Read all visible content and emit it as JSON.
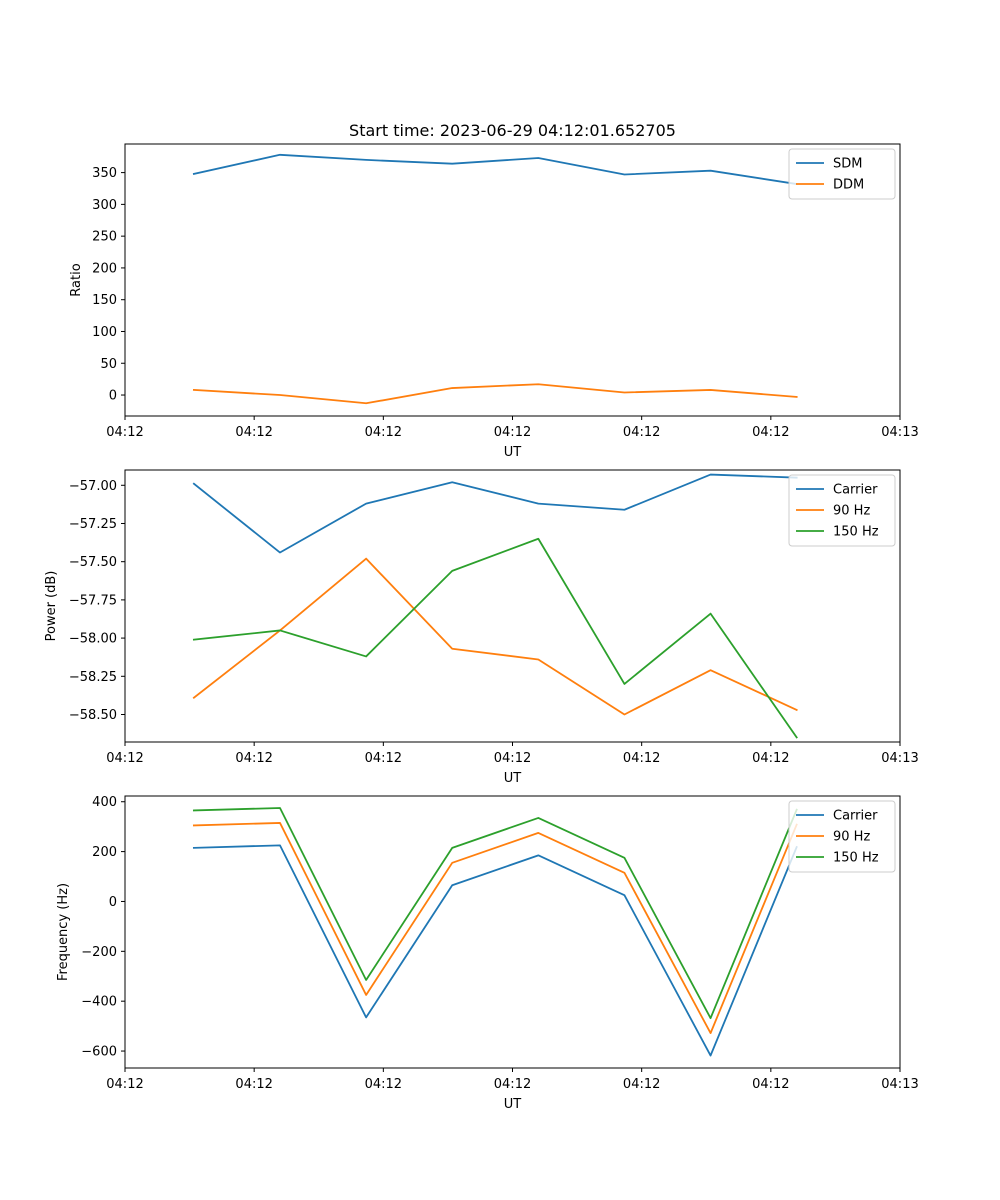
{
  "colors": {
    "blue": "#1f77b4",
    "orange": "#ff7f0e",
    "green": "#2ca02c"
  },
  "chart_data": [
    {
      "type": "line",
      "title": "Start time: 2023-06-29 04:12:01.652705",
      "xlabel": "UT",
      "ylabel": "Ratio",
      "x": [
        1,
        2,
        3,
        4,
        5,
        6,
        7,
        8
      ],
      "xlim": [
        0.2,
        9.2
      ],
      "ylim": [
        -33,
        395
      ],
      "xticks": [
        {
          "v": 0.2,
          "label": "04:12"
        },
        {
          "v": 1.7,
          "label": "04:12"
        },
        {
          "v": 3.2,
          "label": "04:12"
        },
        {
          "v": 4.7,
          "label": "04:12"
        },
        {
          "v": 6.2,
          "label": "04:12"
        },
        {
          "v": 7.7,
          "label": "04:12"
        },
        {
          "v": 9.2,
          "label": "04:13"
        }
      ],
      "yticks": [
        0,
        50,
        100,
        150,
        200,
        250,
        300,
        350
      ],
      "ytick_labels": [
        "0",
        "50",
        "100",
        "150",
        "200",
        "250",
        "300",
        "350"
      ],
      "legend_loc": "upper right",
      "series": [
        {
          "name": "SDM",
          "color": "#1f77b4",
          "values": [
            348,
            378,
            370,
            364,
            373,
            347,
            353,
            332
          ]
        },
        {
          "name": "DDM",
          "color": "#ff7f0e",
          "values": [
            8,
            0,
            -13,
            11,
            17,
            4,
            8,
            -3
          ]
        }
      ]
    },
    {
      "type": "line",
      "title": "",
      "xlabel": "UT",
      "ylabel": "Power (dB)",
      "x": [
        1,
        2,
        3,
        4,
        5,
        6,
        7,
        8
      ],
      "xlim": [
        0.2,
        9.2
      ],
      "ylim": [
        -58.68,
        -56.9
      ],
      "xticks": [
        {
          "v": 0.2,
          "label": "04:12"
        },
        {
          "v": 1.7,
          "label": "04:12"
        },
        {
          "v": 3.2,
          "label": "04:12"
        },
        {
          "v": 4.7,
          "label": "04:12"
        },
        {
          "v": 6.2,
          "label": "04:12"
        },
        {
          "v": 7.7,
          "label": "04:12"
        },
        {
          "v": 9.2,
          "label": "04:13"
        }
      ],
      "yticks": [
        -58.5,
        -58.25,
        -58.0,
        -57.75,
        -57.5,
        -57.25,
        -57.0
      ],
      "ytick_labels": [
        "−58.50",
        "−58.25",
        "−58.00",
        "−57.75",
        "−57.50",
        "−57.25",
        "−57.00"
      ],
      "legend_loc": "upper right",
      "series": [
        {
          "name": "Carrier",
          "color": "#1f77b4",
          "values": [
            -56.99,
            -57.44,
            -57.12,
            -56.98,
            -57.12,
            -57.16,
            -56.93,
            -56.95
          ]
        },
        {
          "name": "90 Hz",
          "color": "#ff7f0e",
          "values": [
            -58.39,
            -57.95,
            -57.48,
            -58.07,
            -58.14,
            -58.5,
            -58.21,
            -58.47
          ]
        },
        {
          "name": "150 Hz",
          "color": "#2ca02c",
          "values": [
            -58.01,
            -57.95,
            -58.12,
            -57.56,
            -57.35,
            -58.3,
            -57.84,
            -58.65
          ]
        }
      ]
    },
    {
      "type": "line",
      "title": "",
      "xlabel": "UT",
      "ylabel": "Frequency (Hz)",
      "x": [
        1,
        2,
        3,
        4,
        5,
        6,
        7,
        8
      ],
      "xlim": [
        0.2,
        9.2
      ],
      "ylim": [
        -668,
        423
      ],
      "xticks": [
        {
          "v": 0.2,
          "label": "04:12"
        },
        {
          "v": 1.7,
          "label": "04:12"
        },
        {
          "v": 3.2,
          "label": "04:12"
        },
        {
          "v": 4.7,
          "label": "04:12"
        },
        {
          "v": 6.2,
          "label": "04:12"
        },
        {
          "v": 7.7,
          "label": "04:12"
        },
        {
          "v": 9.2,
          "label": "04:13"
        }
      ],
      "yticks": [
        -600,
        -400,
        -200,
        0,
        200,
        400
      ],
      "ytick_labels": [
        "−600",
        "−400",
        "−200",
        "0",
        "200",
        "400"
      ],
      "legend_loc": "upper right",
      "series": [
        {
          "name": "Carrier",
          "color": "#1f77b4",
          "values": [
            215,
            225,
            -465,
            65,
            185,
            25,
            -618,
            218
          ]
        },
        {
          "name": "90 Hz",
          "color": "#ff7f0e",
          "values": [
            305,
            315,
            -375,
            155,
            275,
            115,
            -528,
            308
          ]
        },
        {
          "name": "150 Hz",
          "color": "#2ca02c",
          "values": [
            365,
            375,
            -315,
            215,
            335,
            175,
            -468,
            368
          ]
        }
      ]
    }
  ]
}
